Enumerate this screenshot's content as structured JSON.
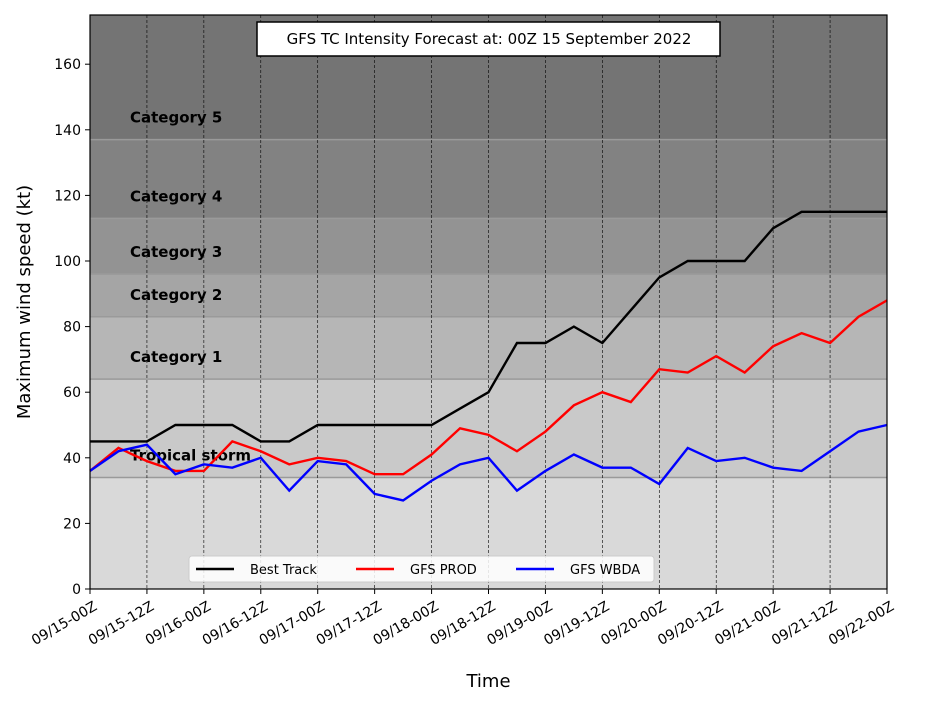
{
  "chart_data": {
    "type": "line",
    "title": "GFS TC Intensity Forecast at: 00Z 15 September 2022",
    "xlabel": "Time",
    "ylabel": "Maximum wind speed (kt)",
    "ylim": [
      0,
      175
    ],
    "yticks": [
      0,
      20,
      40,
      60,
      80,
      100,
      120,
      140,
      160
    ],
    "xlim": [
      "09/15-00Z",
      "09/22-00Z"
    ],
    "xticks": [
      "09/15-00Z",
      "09/15-12Z",
      "09/16-00Z",
      "09/16-12Z",
      "09/17-00Z",
      "09/17-12Z",
      "09/18-00Z",
      "09/18-12Z",
      "09/19-00Z",
      "09/19-12Z",
      "09/20-00Z",
      "09/20-12Z",
      "09/21-00Z",
      "09/21-12Z",
      "09/22-00Z"
    ],
    "x": [
      "09/15-00Z",
      "09/15-06Z",
      "09/15-12Z",
      "09/15-18Z",
      "09/16-00Z",
      "09/16-06Z",
      "09/16-12Z",
      "09/16-18Z",
      "09/17-00Z",
      "09/17-06Z",
      "09/17-12Z",
      "09/17-18Z",
      "09/18-00Z",
      "09/18-06Z",
      "09/18-12Z",
      "09/18-18Z",
      "09/19-00Z",
      "09/19-06Z",
      "09/19-12Z",
      "09/19-18Z",
      "09/20-00Z",
      "09/20-06Z",
      "09/20-12Z",
      "09/20-18Z",
      "09/21-00Z",
      "09/21-06Z",
      "09/21-12Z",
      "09/21-18Z",
      "09/22-00Z"
    ],
    "grid": "vertical dashed lines at x ticks",
    "legend": "lower-left",
    "categories": [
      {
        "label": "Tropical storm",
        "min": 34,
        "max": 64,
        "color": "#c9c9c9"
      },
      {
        "label": "Category 1",
        "min": 64,
        "max": 83,
        "color": "#b6b6b6"
      },
      {
        "label": "Category 2",
        "min": 83,
        "max": 96,
        "color": "#a5a5a5"
      },
      {
        "label": "Category 3",
        "min": 96,
        "max": 113,
        "color": "#939393"
      },
      {
        "label": "Category 4",
        "min": 113,
        "max": 137,
        "color": "#828282"
      },
      {
        "label": "Category 5",
        "min": 137,
        "max": 175,
        "color": "#747474"
      }
    ],
    "below_band_color": "#d9d9d9",
    "series": [
      {
        "name": "Best Track",
        "color": "#000000",
        "values": [
          45,
          45,
          45,
          50,
          50,
          50,
          45,
          45,
          50,
          50,
          50,
          50,
          50,
          55,
          60,
          75,
          75,
          80,
          75,
          85,
          95,
          100,
          100,
          100,
          110,
          115,
          115,
          115,
          115
        ]
      },
      {
        "name": "GFS PROD",
        "color": "#ff0000",
        "values": [
          36,
          43,
          39,
          36,
          36,
          45,
          42,
          38,
          40,
          39,
          35,
          35,
          41,
          49,
          47,
          42,
          48,
          56,
          60,
          57,
          67,
          66,
          71,
          66,
          74,
          78,
          75,
          83,
          88
        ]
      },
      {
        "name": "GFS WBDA",
        "color": "#0000ff",
        "values": [
          36,
          42,
          44,
          35,
          38,
          37,
          40,
          30,
          39,
          38,
          29,
          27,
          33,
          38,
          40,
          30,
          36,
          41,
          37,
          37,
          32,
          43,
          39,
          40,
          37,
          36,
          42,
          48,
          50
        ]
      }
    ]
  }
}
